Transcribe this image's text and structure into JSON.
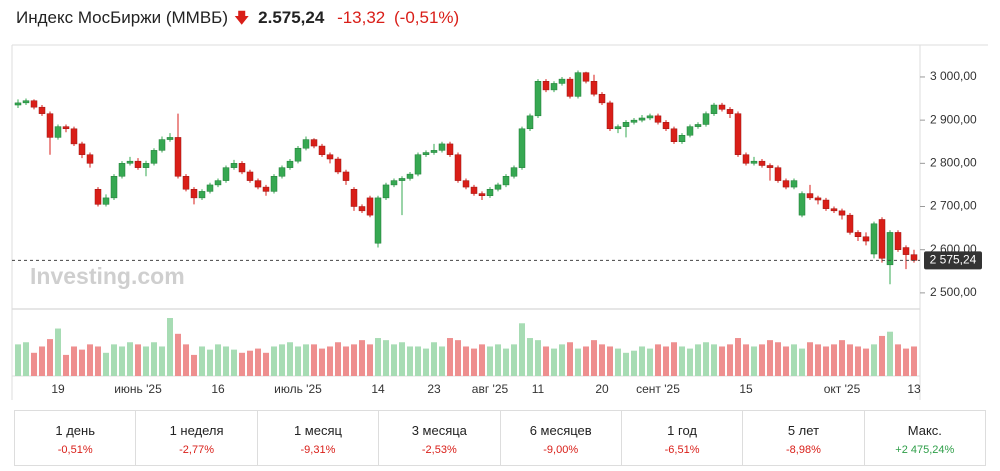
{
  "header": {
    "title": "Индекс МосБиржи (ММВБ)",
    "price": "2.575,24",
    "change": "-13,32",
    "change_pct": "(-0,51%)"
  },
  "chart_data": {
    "type": "candlestick",
    "watermark": "Investing.com",
    "last_label": "2 575,24",
    "up_color": "#36a852",
    "down_color": "#d91e18",
    "up_volume_color": "#a7dcb4",
    "down_volume_color": "#ee8f8f",
    "ylim": [
      2465,
      3074
    ],
    "yticks": [
      {
        "value": 2500,
        "label": "2 500,00"
      },
      {
        "value": 2600,
        "label": "2 600,00"
      },
      {
        "value": 2700,
        "label": "2 700,00"
      },
      {
        "value": 2800,
        "label": "2 800,00"
      },
      {
        "value": 2900,
        "label": "2 900,00"
      },
      {
        "value": 3000,
        "label": "3 000,00"
      }
    ],
    "categories": [
      null,
      null,
      null,
      null,
      null,
      "19",
      null,
      null,
      null,
      null,
      null,
      null,
      null,
      null,
      null,
      "июнь '25",
      null,
      null,
      null,
      null,
      null,
      null,
      null,
      null,
      null,
      "16",
      null,
      null,
      null,
      null,
      null,
      null,
      null,
      null,
      null,
      "июль '25",
      null,
      null,
      null,
      null,
      null,
      null,
      null,
      null,
      null,
      "14",
      null,
      null,
      null,
      null,
      null,
      null,
      "23",
      null,
      null,
      null,
      null,
      null,
      null,
      "авг '25",
      null,
      null,
      null,
      null,
      null,
      "11",
      null,
      null,
      null,
      null,
      null,
      null,
      null,
      "20",
      null,
      null,
      null,
      null,
      null,
      null,
      "сент '25",
      null,
      null,
      null,
      null,
      null,
      null,
      null,
      null,
      null,
      null,
      "15",
      null,
      null,
      null,
      null,
      null,
      null,
      null,
      null,
      null,
      null,
      null,
      "окт '25",
      null,
      null,
      null,
      null,
      null,
      null,
      null,
      null,
      "13"
    ],
    "open": [
      2935,
      2940,
      2945,
      2930,
      2915,
      2860,
      2885,
      2880,
      2845,
      2820,
      2740,
      2705,
      2720,
      2770,
      2800,
      2805,
      2790,
      2800,
      2830,
      2855,
      2860,
      2770,
      2740,
      2720,
      2735,
      2750,
      2760,
      2790,
      2800,
      2780,
      2760,
      2745,
      2735,
      2770,
      2790,
      2805,
      2835,
      2855,
      2840,
      2820,
      2810,
      2780,
      2740,
      2700,
      2720,
      2615,
      2720,
      2750,
      2760,
      2765,
      2775,
      2820,
      2825,
      2830,
      2845,
      2820,
      2760,
      2745,
      2730,
      2725,
      2740,
      2750,
      2770,
      2790,
      2880,
      2910,
      2990,
      2970,
      2985,
      2995,
      2955,
      3010,
      2990,
      2960,
      2940,
      2880,
      2885,
      2895,
      2900,
      2905,
      2910,
      2895,
      2880,
      2850,
      2865,
      2885,
      2890,
      2915,
      2935,
      2925,
      2915,
      2820,
      2800,
      2805,
      2795,
      2790,
      2760,
      2745,
      2680,
      2730,
      2720,
      2715,
      2695,
      2690,
      2680,
      2640,
      2630,
      2590,
      2670,
      2565,
      2640,
      2605,
      2588.56
    ],
    "high": [
      2948,
      2950,
      2948,
      2935,
      2920,
      2890,
      2890,
      2885,
      2850,
      2825,
      2745,
      2728,
      2775,
      2805,
      2815,
      2812,
      2806,
      2835,
      2862,
      2870,
      2915,
      2775,
      2745,
      2740,
      2755,
      2765,
      2795,
      2808,
      2805,
      2785,
      2765,
      2750,
      2775,
      2795,
      2810,
      2840,
      2862,
      2858,
      2845,
      2825,
      2815,
      2785,
      2745,
      2705,
      2725,
      2725,
      2755,
      2765,
      2770,
      2780,
      2825,
      2830,
      2845,
      2850,
      2850,
      2825,
      2765,
      2750,
      2735,
      2745,
      2755,
      2775,
      2795,
      2885,
      2915,
      2995,
      2995,
      2990,
      3000,
      3000,
      3015,
      3012,
      3005,
      2965,
      2945,
      2890,
      2900,
      2905,
      2912,
      2915,
      2915,
      2900,
      2885,
      2870,
      2890,
      2895,
      2920,
      2940,
      2940,
      2930,
      2920,
      2825,
      2815,
      2810,
      2800,
      2795,
      2765,
      2765,
      2735,
      2750,
      2725,
      2720,
      2700,
      2695,
      2685,
      2645,
      2640,
      2665,
      2675,
      2645,
      2645,
      2610,
      2600
    ],
    "low": [
      2928,
      2935,
      2925,
      2910,
      2820,
      2855,
      2872,
      2840,
      2812,
      2790,
      2700,
      2700,
      2715,
      2765,
      2795,
      2785,
      2770,
      2795,
      2825,
      2850,
      2765,
      2735,
      2705,
      2715,
      2730,
      2745,
      2755,
      2785,
      2775,
      2755,
      2740,
      2725,
      2730,
      2765,
      2785,
      2800,
      2830,
      2835,
      2815,
      2800,
      2775,
      2750,
      2690,
      2685,
      2675,
      2605,
      2715,
      2745,
      2680,
      2760,
      2770,
      2815,
      2820,
      2825,
      2815,
      2755,
      2740,
      2725,
      2715,
      2720,
      2735,
      2745,
      2765,
      2785,
      2875,
      2905,
      2965,
      2965,
      2980,
      2950,
      2950,
      2985,
      2955,
      2935,
      2875,
      2870,
      2860,
      2890,
      2895,
      2900,
      2890,
      2875,
      2845,
      2845,
      2860,
      2880,
      2885,
      2910,
      2920,
      2905,
      2815,
      2795,
      2795,
      2790,
      2760,
      2755,
      2740,
      2740,
      2675,
      2715,
      2705,
      2690,
      2685,
      2670,
      2635,
      2620,
      2610,
      2580,
      2570,
      2520,
      2595,
      2555,
      2570
    ],
    "close": [
      2940,
      2945,
      2930,
      2915,
      2860,
      2885,
      2880,
      2845,
      2820,
      2800,
      2705,
      2720,
      2770,
      2800,
      2805,
      2790,
      2800,
      2830,
      2855,
      2860,
      2770,
      2740,
      2720,
      2735,
      2750,
      2760,
      2790,
      2800,
      2780,
      2760,
      2745,
      2735,
      2770,
      2790,
      2805,
      2835,
      2855,
      2840,
      2820,
      2810,
      2780,
      2760,
      2700,
      2690,
      2680,
      2720,
      2750,
      2760,
      2765,
      2775,
      2820,
      2825,
      2830,
      2845,
      2820,
      2760,
      2745,
      2730,
      2725,
      2740,
      2750,
      2770,
      2790,
      2880,
      2910,
      2990,
      2970,
      2985,
      2995,
      2955,
      3010,
      2990,
      2960,
      2940,
      2880,
      2885,
      2895,
      2900,
      2905,
      2910,
      2895,
      2880,
      2850,
      2865,
      2885,
      2890,
      2915,
      2935,
      2925,
      2915,
      2820,
      2800,
      2805,
      2795,
      2790,
      2760,
      2745,
      2760,
      2730,
      2720,
      2715,
      2695,
      2690,
      2680,
      2640,
      2630,
      2620,
      2660,
      2580,
      2640,
      2600,
      2588.56,
      2575.24
    ],
    "volume": [
      30,
      32,
      22,
      28,
      35,
      45,
      20,
      28,
      25,
      30,
      28,
      22,
      30,
      28,
      32,
      30,
      28,
      32,
      28,
      55,
      40,
      30,
      20,
      28,
      25,
      30,
      28,
      25,
      22,
      24,
      26,
      22,
      28,
      30,
      32,
      28,
      30,
      30,
      26,
      28,
      32,
      28,
      30,
      34,
      30,
      36,
      34,
      30,
      32,
      28,
      28,
      26,
      32,
      28,
      36,
      34,
      28,
      26,
      30,
      28,
      30,
      26,
      30,
      50,
      36,
      34,
      28,
      26,
      30,
      32,
      26,
      28,
      34,
      30,
      28,
      26,
      22,
      24,
      28,
      26,
      30,
      28,
      32,
      28,
      26,
      30,
      32,
      30,
      28,
      30,
      36,
      30,
      28,
      30,
      34,
      32,
      28,
      30,
      26,
      32,
      30,
      28,
      30,
      34,
      30,
      28,
      26,
      30,
      38,
      42,
      30,
      26,
      28
    ]
  },
  "performance": [
    {
      "period": "1 день",
      "value": "-0,51%"
    },
    {
      "period": "1 неделя",
      "value": "-2,77%"
    },
    {
      "period": "1 месяц",
      "value": "-9,31%"
    },
    {
      "period": "3 месяца",
      "value": "-2,53%"
    },
    {
      "period": "6 месяцев",
      "value": "-9,00%"
    },
    {
      "period": "1 год",
      "value": "-6,51%"
    },
    {
      "period": "5 лет",
      "value": "-8,98%"
    },
    {
      "period": "Макс.",
      "value": "+2 475,24%"
    }
  ]
}
